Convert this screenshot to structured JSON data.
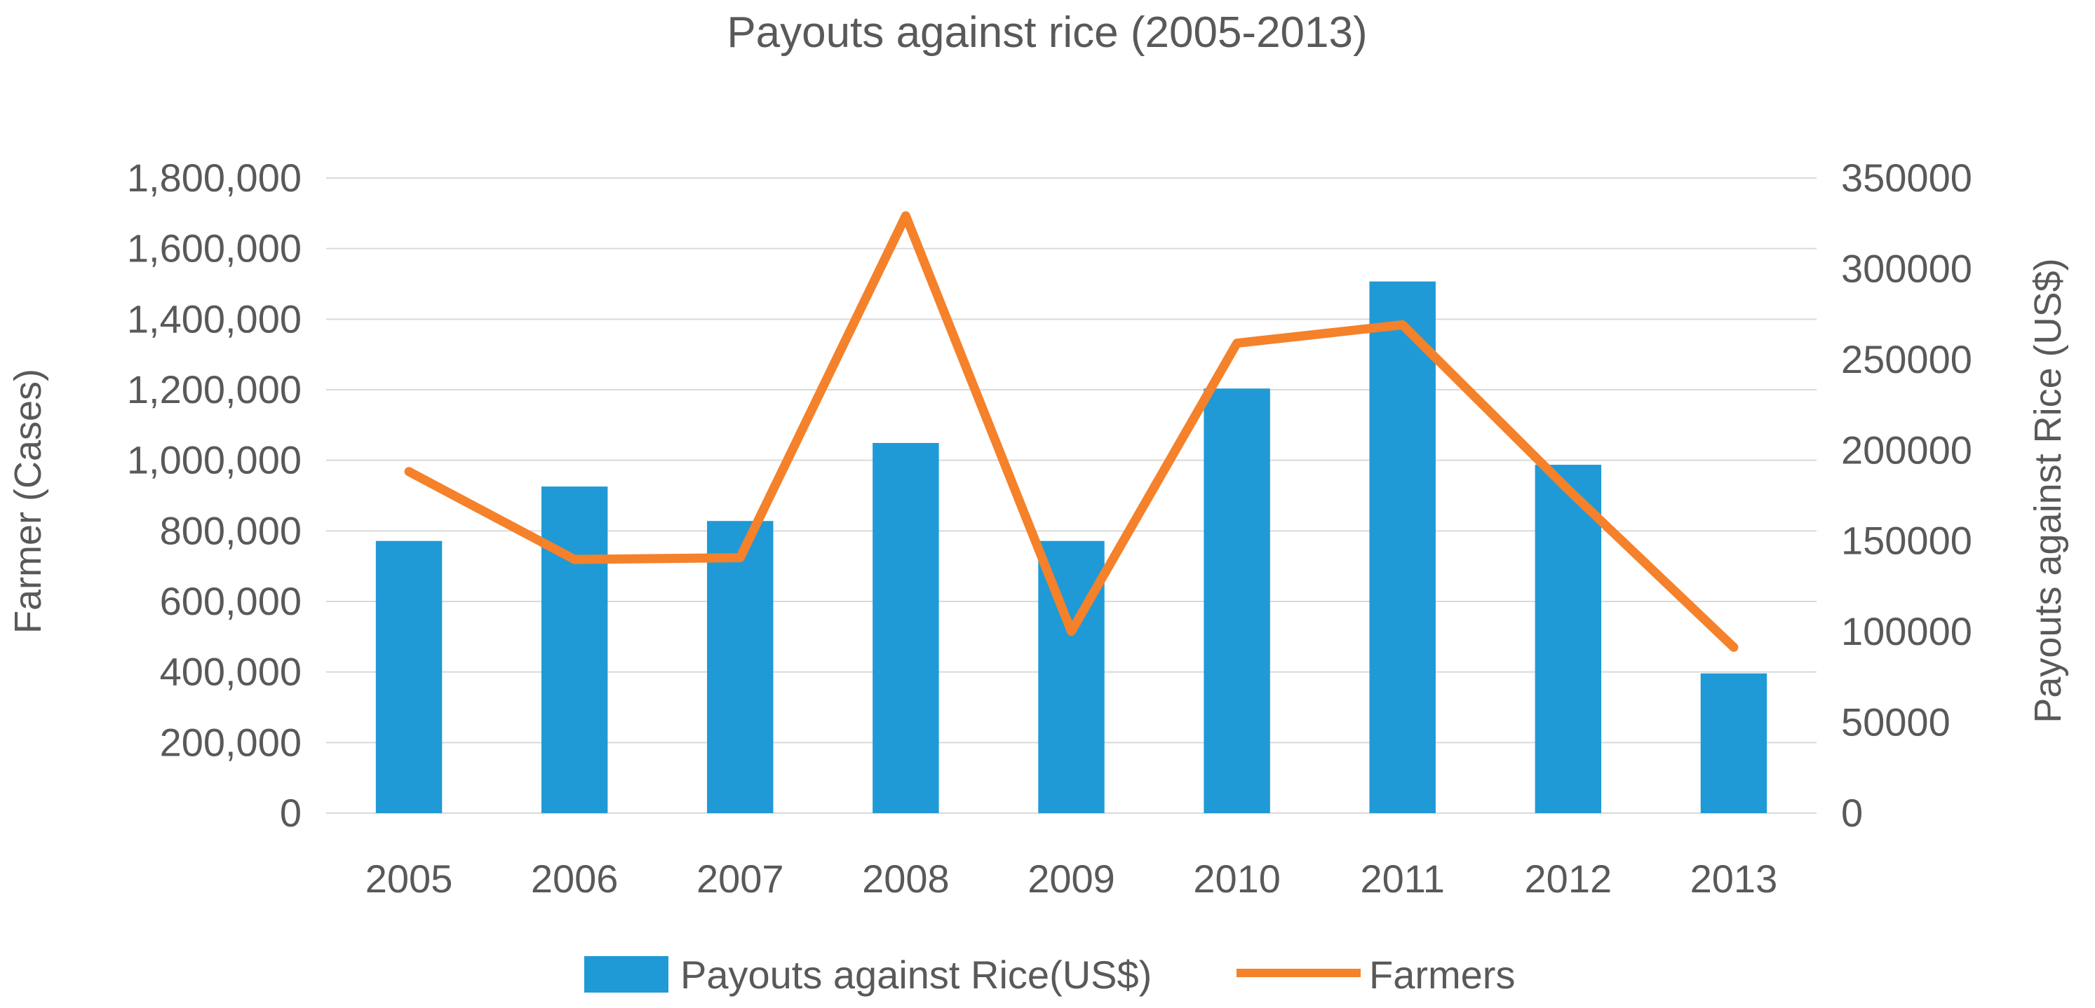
{
  "chart_data": {
    "type": "bar",
    "title": "Payouts against rice (2005-2013)",
    "categories": [
      "2005",
      "2006",
      "2007",
      "2008",
      "2009",
      "2010",
      "2011",
      "2012",
      "2013"
    ],
    "series": [
      {
        "name": "Payouts against Rice(US$)",
        "type": "bar",
        "axis": "right",
        "color": "#1f9ad6",
        "values": [
          150000,
          180000,
          161000,
          204000,
          150000,
          234000,
          293000,
          192000,
          77000
        ]
      },
      {
        "name": "Farmers",
        "type": "line",
        "axis": "left",
        "color": "#f5812a",
        "values": [
          968000,
          719000,
          724000,
          1693000,
          515000,
          1332000,
          1384000,
          917000,
          470000
        ]
      }
    ],
    "y_left": {
      "label": "Farmer (Cases)",
      "min": 0,
      "max": 1800000,
      "ticks": [
        "0",
        "200,000",
        "400,000",
        "600,000",
        "800,000",
        "1,000,000",
        "1,200,000",
        "1,400,000",
        "1,600,000",
        "1,800,000"
      ]
    },
    "y_right": {
      "label": "Payouts against Rice (US$)",
      "min": 0,
      "max": 350000,
      "ticks": [
        "0",
        "50000",
        "100000",
        "150000",
        "200000",
        "250000",
        "300000",
        "350000"
      ]
    },
    "grid": true,
    "legend": "bottom",
    "colors": {
      "text": "#595959",
      "gridline": "#d9d9d9"
    }
  }
}
